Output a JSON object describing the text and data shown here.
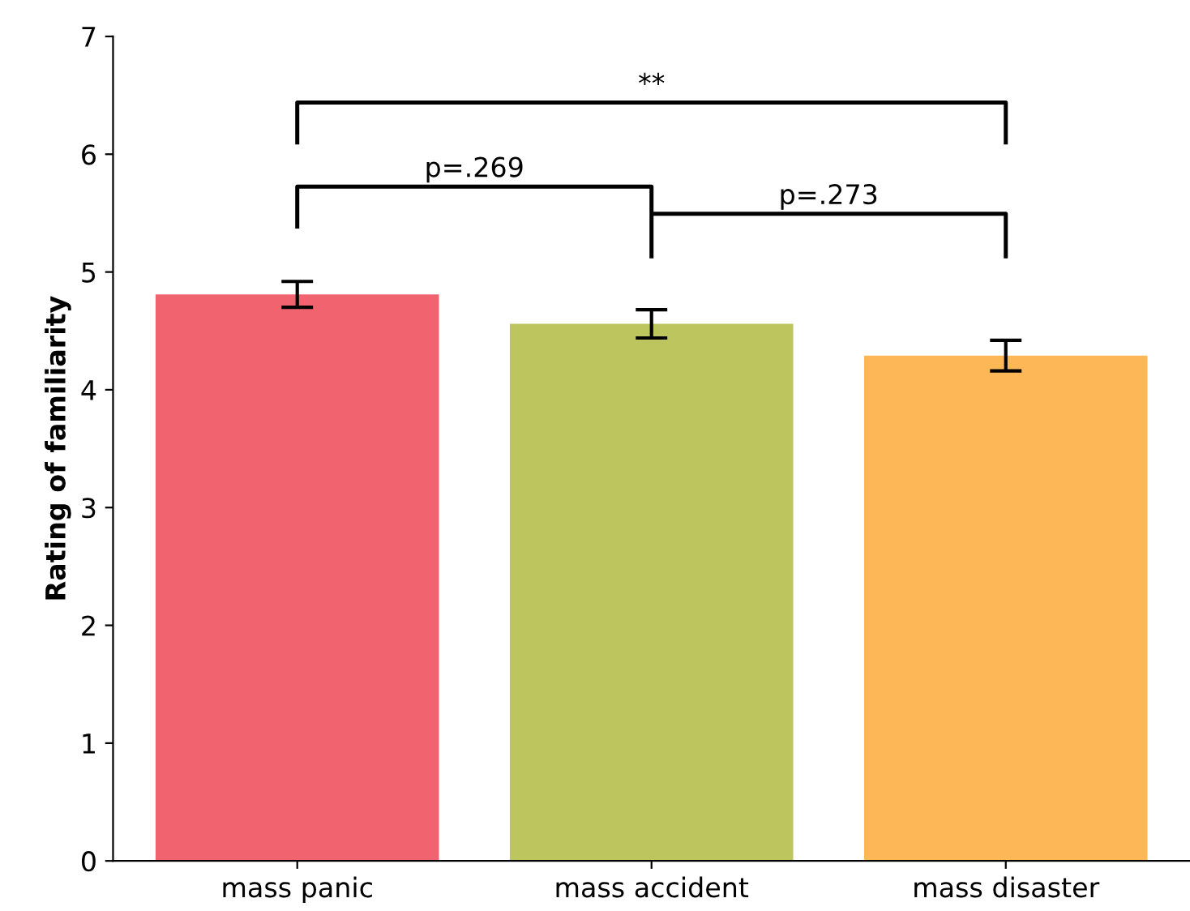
{
  "chart_data": {
    "type": "bar",
    "ylabel": "Rating of familiarity",
    "categories": [
      "mass panic",
      "mass accident",
      "mass disaster"
    ],
    "values": [
      4.81,
      4.56,
      4.29
    ],
    "errors": [
      0.11,
      0.12,
      0.13
    ],
    "colors": [
      "#f0636f",
      "#bdc65e",
      "#fdb756"
    ],
    "ylim": [
      0,
      7
    ],
    "yticks": [
      0,
      1,
      2,
      3,
      4,
      5,
      6,
      7
    ],
    "grid": false,
    "annotations": [
      "p=.269",
      "p=.273",
      "**"
    ]
  }
}
